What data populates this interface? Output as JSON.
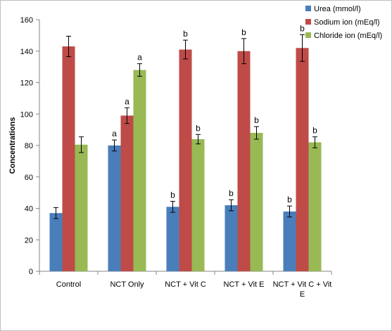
{
  "chart_data": {
    "type": "bar",
    "title": "",
    "xlabel": "",
    "ylabel": "Concentrations",
    "ylim": [
      0,
      160
    ],
    "yticks": [
      0,
      20,
      40,
      60,
      80,
      100,
      120,
      140,
      160
    ],
    "grid": false,
    "legend_position": "top-right",
    "categories": [
      "Control",
      "NCT Only",
      "NCT + Vit C",
      "NCT + Vit E",
      "NCT + Vit C + Vit E"
    ],
    "series": [
      {
        "name": "Urea (mmol/l)",
        "color": "#4a7ebb",
        "values": [
          37,
          80,
          41,
          42,
          38
        ],
        "errors": [
          3.5,
          3.5,
          3.5,
          3.5,
          3.5
        ],
        "labels": [
          "",
          "a",
          "b",
          "b",
          "b"
        ]
      },
      {
        "name": "Sodium ion (mEq/l)",
        "color": "#be4b48",
        "values": [
          143,
          99,
          141,
          140,
          142
        ],
        "errors": [
          6.5,
          5,
          6,
          8,
          8.5
        ],
        "labels": [
          "",
          "a",
          "b",
          "b",
          "b"
        ]
      },
      {
        "name": "Chloride ion (mEq/l)",
        "color": "#98b954",
        "values": [
          80.5,
          128,
          84,
          88,
          82
        ],
        "errors": [
          5,
          4,
          3,
          4,
          3.5
        ],
        "labels": [
          "",
          "a",
          "b",
          "b",
          "b"
        ]
      }
    ]
  }
}
